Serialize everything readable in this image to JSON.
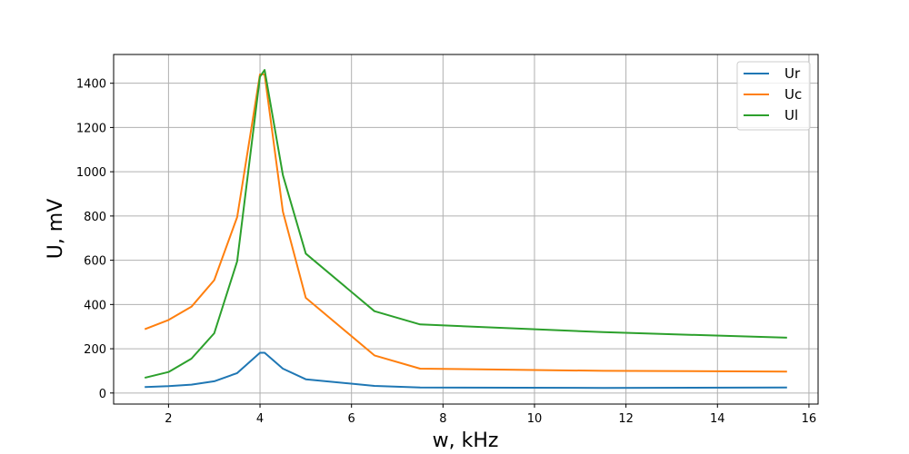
{
  "chart_data": {
    "type": "line",
    "title": "",
    "xlabel": "w, kHz",
    "ylabel": "U, mV",
    "xlim": [
      0.8,
      16.2
    ],
    "ylim": [
      -50,
      1530
    ],
    "x_ticks": [
      2,
      4,
      6,
      8,
      10,
      12,
      14,
      16
    ],
    "y_ticks": [
      0,
      200,
      400,
      600,
      800,
      1000,
      1200,
      1400
    ],
    "grid": true,
    "legend_position": "top-right",
    "series": [
      {
        "name": "Ur",
        "color": "#1f77b4",
        "x": [
          1.5,
          2,
          2.5,
          3,
          3.5,
          4,
          4.1,
          4.5,
          5,
          6.5,
          7.5,
          11.5,
          15.5
        ],
        "y": [
          27,
          31,
          38,
          53,
          90,
          182,
          182,
          110,
          62,
          32,
          25,
          23,
          25
        ]
      },
      {
        "name": "Uc",
        "color": "#ff7f0e",
        "x": [
          1.5,
          2,
          2.5,
          3,
          3.5,
          4,
          4.1,
          4.5,
          5,
          6.5,
          7.5,
          11.5,
          15.5
        ],
        "y": [
          290,
          330,
          390,
          510,
          795,
          1440,
          1440,
          820,
          430,
          170,
          110,
          100,
          97
        ]
      },
      {
        "name": "Ul",
        "color": "#2ca02c",
        "x": [
          1.5,
          2,
          2.5,
          3,
          3.5,
          4,
          4.1,
          4.5,
          5,
          6.5,
          7.5,
          11.5,
          15.5
        ],
        "y": [
          70,
          95,
          155,
          270,
          595,
          1430,
          1460,
          985,
          630,
          370,
          310,
          275,
          250
        ]
      }
    ]
  }
}
